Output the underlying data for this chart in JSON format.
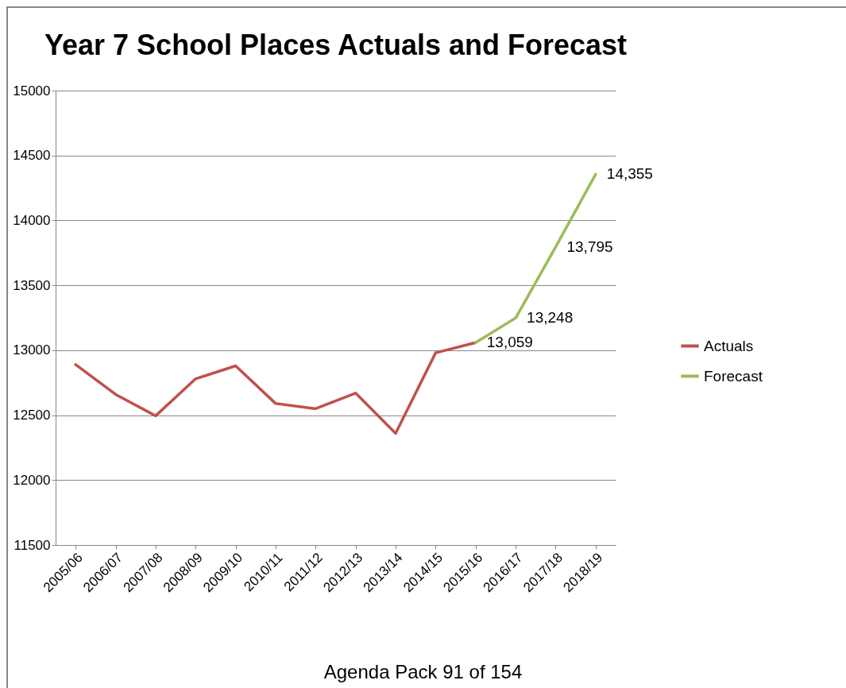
{
  "chart_data": {
    "type": "line",
    "title": "Year 7 School Places Actuals and Forecast",
    "categories": [
      "2005/06",
      "2006/07",
      "2007/08",
      "2008/09",
      "2009/10",
      "2010/11",
      "2011/12",
      "2012/13",
      "2013/14",
      "2014/15",
      "2015/16",
      "2016/17",
      "2017/18",
      "2018/19"
    ],
    "series": [
      {
        "name": "Actuals",
        "color": "#c0504d",
        "values": [
          12890,
          12660,
          12495,
          12780,
          12880,
          12590,
          12550,
          12670,
          12360,
          12980,
          13059,
          null,
          null,
          null
        ]
      },
      {
        "name": "Forecast",
        "color": "#9bbb59",
        "values": [
          null,
          null,
          null,
          null,
          null,
          null,
          null,
          null,
          null,
          null,
          13059,
          13248,
          13795,
          14355
        ],
        "value_labels": [
          null,
          null,
          null,
          null,
          null,
          null,
          null,
          null,
          null,
          null,
          "13,059",
          "13,248",
          "13,795",
          "14,355"
        ]
      }
    ],
    "ylim": [
      11500,
      15000
    ],
    "yticks": [
      11500,
      12000,
      12500,
      13000,
      13500,
      14000,
      14500,
      15000
    ],
    "grid": "y",
    "legend": "right",
    "marker": "none",
    "line_style": "solid",
    "annotations": [
      "Agenda Pack 91 of 154"
    ]
  }
}
